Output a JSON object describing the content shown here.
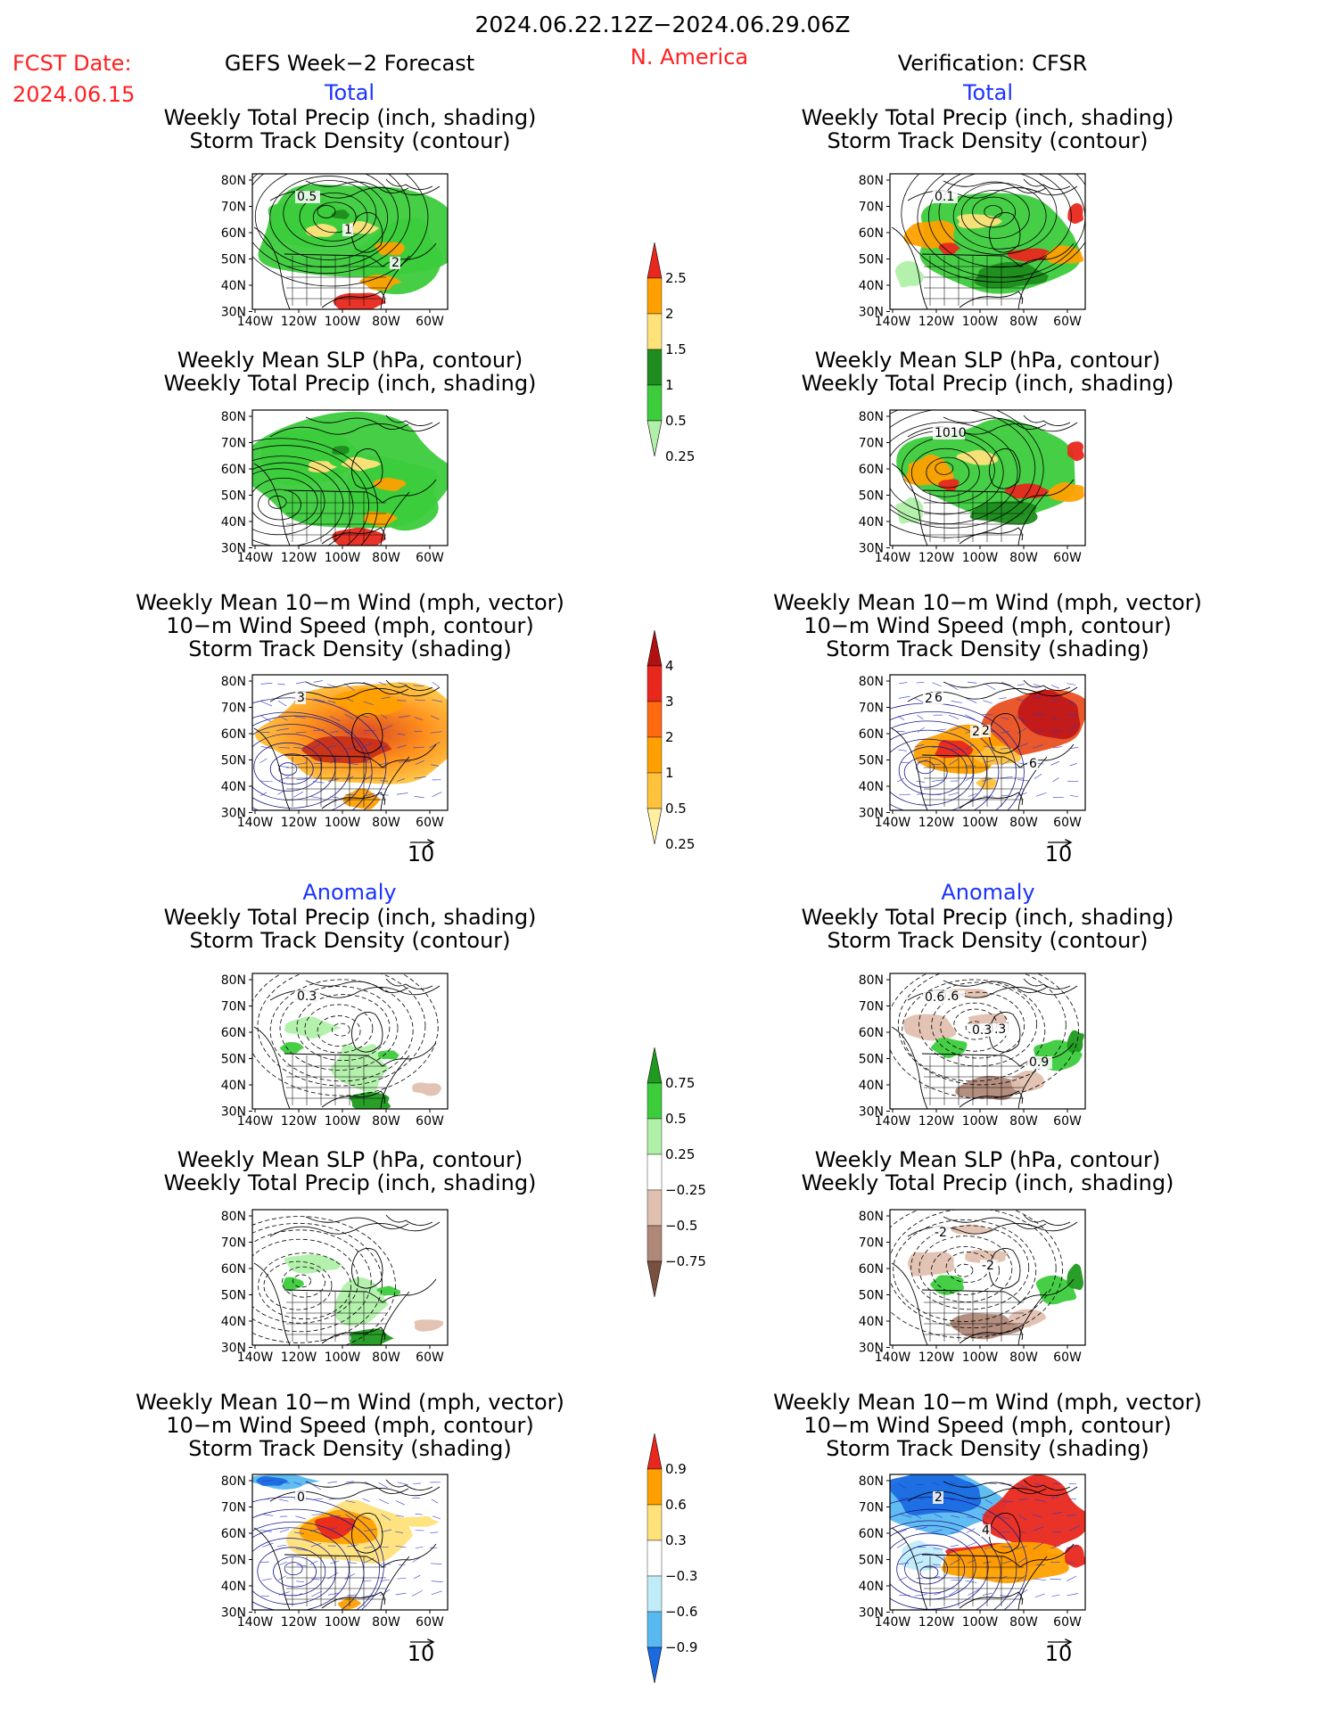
{
  "header": {
    "date_range": "2024.06.22.12Z−2024.06.29.06Z",
    "fcst_label": "FCST Date:",
    "fcst_date": "2024.06.15",
    "forecast_title": "GEFS Week−2 Forecast",
    "region": "N. America",
    "verification": "Verification: CFSR"
  },
  "sections": {
    "total": "Total",
    "anomaly": "Anomaly"
  },
  "panel_titles": {
    "precip_storm": [
      "Weekly Total Precip (inch, shading)",
      "Storm Track Density (contour)"
    ],
    "slp_precip": [
      "Weekly Mean SLP (hPa, contour)",
      "Weekly Total Precip (inch, shading)"
    ],
    "wind_storm": [
      "Weekly Mean 10−m Wind (mph, vector)",
      "10−m Wind Speed (mph, contour)",
      "Storm Track Density (shading)"
    ]
  },
  "axis": {
    "lat_labels": [
      "80N",
      "70N",
      "60N",
      "50N",
      "40N",
      "30N"
    ],
    "lon_labels": [
      "140W",
      "120W",
      "100W",
      "80W",
      "60W"
    ]
  },
  "vector_reference": "10",
  "colorbars": {
    "precip_total": {
      "labels": [
        "2.5",
        "2",
        "1.5",
        "1",
        "0.5",
        "0.25"
      ],
      "colors": [
        "#e8281c",
        "#ffa000",
        "#ffe27a",
        "#1e8c1e",
        "#3ccc3c",
        "#b0f0a8"
      ]
    },
    "storm_total": {
      "labels": [
        "4",
        "3",
        "2",
        "1",
        "0.5",
        "0.25"
      ],
      "colors": [
        "#b01010",
        "#e8281c",
        "#ff6a10",
        "#ffa000",
        "#ffc23c",
        "#fff0a0"
      ]
    },
    "precip_anom": {
      "labels": [
        "0.75",
        "0.5",
        "0.25",
        "−0.25",
        "−0.5",
        "−0.75"
      ],
      "colors": [
        "#1e9a1e",
        "#3ccc3c",
        "#b0f0a8",
        "#ffffff",
        "#e0c0b0",
        "#b08878",
        "#7a5040"
      ]
    },
    "storm_anom": {
      "labels": [
        "0.9",
        "0.6",
        "0.3",
        "−0.3",
        "−0.6",
        "−0.9"
      ],
      "colors": [
        "#e8281c",
        "#ffa000",
        "#ffe27a",
        "#ffffff",
        "#c0ecf8",
        "#58b8f0",
        "#1a6ae0"
      ]
    }
  },
  "contour_labels": {
    "fc_total_precip": [
      "0.5",
      "1",
      "2"
    ],
    "ob_total_precip": [
      "0.1"
    ],
    "ob_total_slp": [
      "1010"
    ],
    "fc_total_wind": [
      "3"
    ],
    "ob_total_wind": [
      "6",
      "2",
      "6",
      "2",
      "2"
    ],
    "fc_anom_precip": [
      "0.3"
    ],
    "ob_anom_precip": [
      "-0.6",
      "-0.3",
      "0.9",
      "0.6",
      "0.3"
    ],
    "ob_anom_slp": [
      "-2",
      "-2"
    ],
    "fc_anom_wind": [
      "0"
    ],
    "ob_anom_wind": [
      "2",
      "4"
    ]
  }
}
